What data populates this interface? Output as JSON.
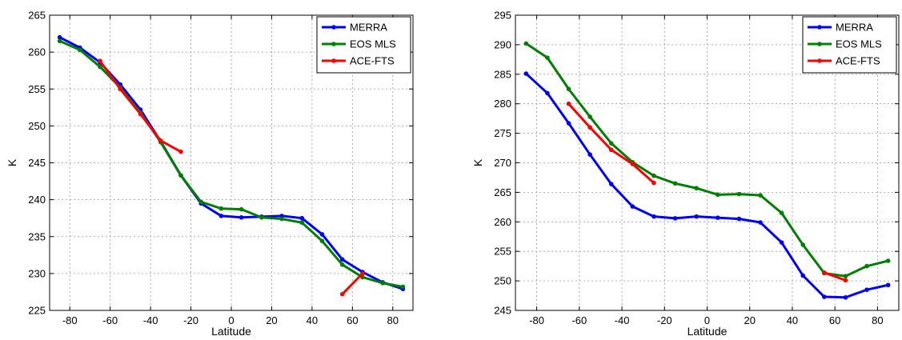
{
  "chart_data": [
    {
      "type": "line",
      "xlabel": "Latitude",
      "ylabel": "K",
      "xlim": [
        -90,
        90
      ],
      "ylim": [
        225,
        265
      ],
      "xticks": [
        -80,
        -60,
        -40,
        -20,
        0,
        20,
        40,
        60,
        80
      ],
      "yticks": [
        225,
        230,
        235,
        240,
        245,
        250,
        255,
        260,
        265
      ],
      "grid": true,
      "legend_position": "top-right",
      "series": [
        {
          "name": "MERRA",
          "color": "#0000ff",
          "x": [
            -85,
            -75,
            -65,
            -55,
            -45,
            -35,
            -25,
            -15,
            -5,
            5,
            15,
            25,
            35,
            45,
            55,
            65,
            75,
            85
          ],
          "y": [
            262.0,
            260.6,
            258.6,
            255.6,
            252.2,
            247.9,
            243.3,
            239.5,
            237.8,
            237.6,
            237.7,
            237.8,
            237.5,
            235.3,
            231.9,
            230.2,
            228.8,
            227.9
          ]
        },
        {
          "name": "EOS MLS",
          "color": "#008000",
          "x": [
            -85,
            -75,
            -65,
            -55,
            -45,
            -35,
            -25,
            -15,
            -5,
            5,
            15,
            25,
            35,
            45,
            55,
            65,
            75,
            85
          ],
          "y": [
            261.5,
            260.3,
            258.0,
            255.2,
            251.8,
            247.8,
            243.3,
            239.7,
            238.8,
            238.7,
            237.6,
            237.4,
            236.9,
            234.4,
            231.2,
            229.5,
            228.7,
            228.2
          ]
        },
        {
          "name": "ACE-FTS",
          "color": "#ff0000",
          "segments": [
            {
              "x": [
                -65,
                -55,
                -45,
                -35,
                -25
              ],
              "y": [
                258.8,
                255.0,
                251.6,
                248.0,
                246.5
              ]
            },
            {
              "x": [
                55,
                65
              ],
              "y": [
                227.2,
                230.0
              ]
            }
          ]
        }
      ]
    },
    {
      "type": "line",
      "xlabel": "Latitude",
      "ylabel": "K",
      "xlim": [
        -90,
        90
      ],
      "ylim": [
        245,
        295
      ],
      "xticks": [
        -80,
        -60,
        -40,
        -20,
        0,
        20,
        40,
        60,
        80
      ],
      "yticks": [
        245,
        250,
        255,
        260,
        265,
        270,
        275,
        280,
        285,
        290,
        295
      ],
      "grid": true,
      "legend_position": "top-right",
      "series": [
        {
          "name": "MERRA",
          "color": "#0000ff",
          "x": [
            -85,
            -75,
            -65,
            -55,
            -45,
            -35,
            -25,
            -15,
            -5,
            5,
            15,
            25,
            35,
            45,
            55,
            65,
            75,
            85
          ],
          "y": [
            285.1,
            281.8,
            276.7,
            271.4,
            266.4,
            262.6,
            260.9,
            260.6,
            260.9,
            260.7,
            260.5,
            259.9,
            256.5,
            250.9,
            247.3,
            247.2,
            248.5,
            249.3
          ]
        },
        {
          "name": "EOS MLS",
          "color": "#008000",
          "x": [
            -85,
            -75,
            -65,
            -55,
            -45,
            -35,
            -25,
            -15,
            -5,
            5,
            15,
            25,
            35,
            45,
            55,
            65,
            75,
            85
          ],
          "y": [
            290.2,
            287.8,
            282.5,
            277.8,
            273.3,
            270.1,
            267.8,
            266.5,
            265.7,
            264.6,
            264.7,
            264.5,
            261.5,
            256.1,
            251.3,
            250.8,
            252.5,
            253.4
          ]
        },
        {
          "name": "ACE-FTS",
          "color": "#ff0000",
          "segments": [
            {
              "x": [
                -65,
                -55,
                -45,
                -35,
                -25
              ],
              "y": [
                280.0,
                276.0,
                272.2,
                269.8,
                266.6
              ]
            },
            {
              "x": [
                55,
                65
              ],
              "y": [
                251.4,
                250.1
              ]
            }
          ]
        }
      ]
    }
  ]
}
